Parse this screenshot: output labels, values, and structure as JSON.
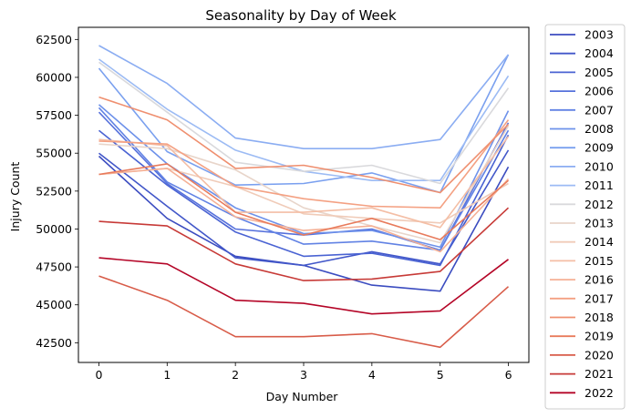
{
  "chart_data": {
    "type": "line",
    "title": "Seasonality by Day of Week",
    "xlabel": "Day Number",
    "ylabel": "Injury Count",
    "x": [
      0,
      1,
      2,
      3,
      4,
      5,
      6
    ],
    "xlim": [
      -0.3,
      6.3
    ],
    "ylim": [
      41200,
      63300
    ],
    "xticks": [
      0,
      1,
      2,
      3,
      4,
      5,
      6
    ],
    "yticks": [
      42500,
      45000,
      47500,
      50000,
      52500,
      55000,
      57500,
      60000,
      62500
    ],
    "ytick_labels": [
      "42500",
      "45000",
      "47500",
      "50000",
      "52500",
      "55000",
      "57500",
      "60000",
      "62500"
    ],
    "xtick_labels": [
      "0",
      "1",
      "2",
      "3",
      "4",
      "5",
      "6"
    ],
    "grid": false,
    "legend_position": "outside-right",
    "series": [
      {
        "name": "2003",
        "color": "#3b4cc0",
        "values": [
          54800,
          50700,
          48200,
          47600,
          46300,
          45900,
          54100
        ]
      },
      {
        "name": "2004",
        "color": "#4257c9",
        "values": [
          55000,
          51500,
          48100,
          47600,
          48500,
          47700,
          55200
        ]
      },
      {
        "name": "2005",
        "color": "#4a63d3",
        "values": [
          56500,
          52900,
          49800,
          48200,
          48400,
          47600,
          56200
        ]
      },
      {
        "name": "2006",
        "color": "#5671dc",
        "values": [
          57700,
          53000,
          50000,
          49600,
          50000,
          48600,
          57000
        ]
      },
      {
        "name": "2007",
        "color": "#6182e4",
        "values": [
          58000,
          53100,
          50800,
          49000,
          49200,
          48600,
          56500
        ]
      },
      {
        "name": "2008",
        "color": "#6d91ea",
        "values": [
          58200,
          54300,
          51400,
          49700,
          49900,
          48800,
          57800
        ]
      },
      {
        "name": "2009",
        "color": "#7aa0ef",
        "values": [
          60600,
          55100,
          52900,
          53000,
          53700,
          52400,
          61500
        ]
      },
      {
        "name": "2010",
        "color": "#8badf2",
        "values": [
          62100,
          59600,
          56000,
          55300,
          55300,
          55900,
          61500
        ]
      },
      {
        "name": "2011",
        "color": "#9cbbf4",
        "values": [
          61200,
          57900,
          55200,
          53800,
          53200,
          53200,
          60100
        ]
      },
      {
        "name": "2012",
        "color": "#d9d9dc",
        "values": [
          61000,
          57700,
          54400,
          53800,
          54200,
          53000,
          59300
        ]
      },
      {
        "name": "2013",
        "color": "#e8d5ca",
        "values": [
          55600,
          55300,
          53900,
          51400,
          50200,
          49100,
          56800
        ]
      },
      {
        "name": "2014",
        "color": "#f0cbb8",
        "values": [
          53600,
          54000,
          52800,
          51000,
          50700,
          50400,
          53000
        ]
      },
      {
        "name": "2015",
        "color": "#f4bea5",
        "values": [
          55900,
          55500,
          51100,
          51100,
          51400,
          50100,
          56100
        ]
      },
      {
        "name": "2016",
        "color": "#f5b095",
        "values": [
          53600,
          54000,
          50800,
          49900,
          50200,
          48500,
          53300
        ]
      },
      {
        "name": "2017",
        "color": "#f4a183",
        "values": [
          55800,
          55600,
          52800,
          52000,
          51500,
          51400,
          57200
        ]
      },
      {
        "name": "2018",
        "color": "#ef8f6f",
        "values": [
          58700,
          57200,
          54000,
          54200,
          53400,
          52400,
          56900
        ]
      },
      {
        "name": "2019",
        "color": "#e87b5c",
        "values": [
          53600,
          54300,
          51100,
          49600,
          50700,
          49300,
          53200
        ]
      },
      {
        "name": "2020",
        "color": "#d85c49",
        "values": [
          46900,
          45300,
          42900,
          42900,
          43100,
          42200,
          46200
        ]
      },
      {
        "name": "2021",
        "color": "#c73a37",
        "values": [
          50500,
          50200,
          47700,
          46600,
          46700,
          47200,
          51400
        ]
      },
      {
        "name": "2022",
        "color": "#b40426",
        "values": [
          48100,
          47700,
          45300,
          45100,
          44400,
          44600,
          48000
        ]
      }
    ]
  }
}
